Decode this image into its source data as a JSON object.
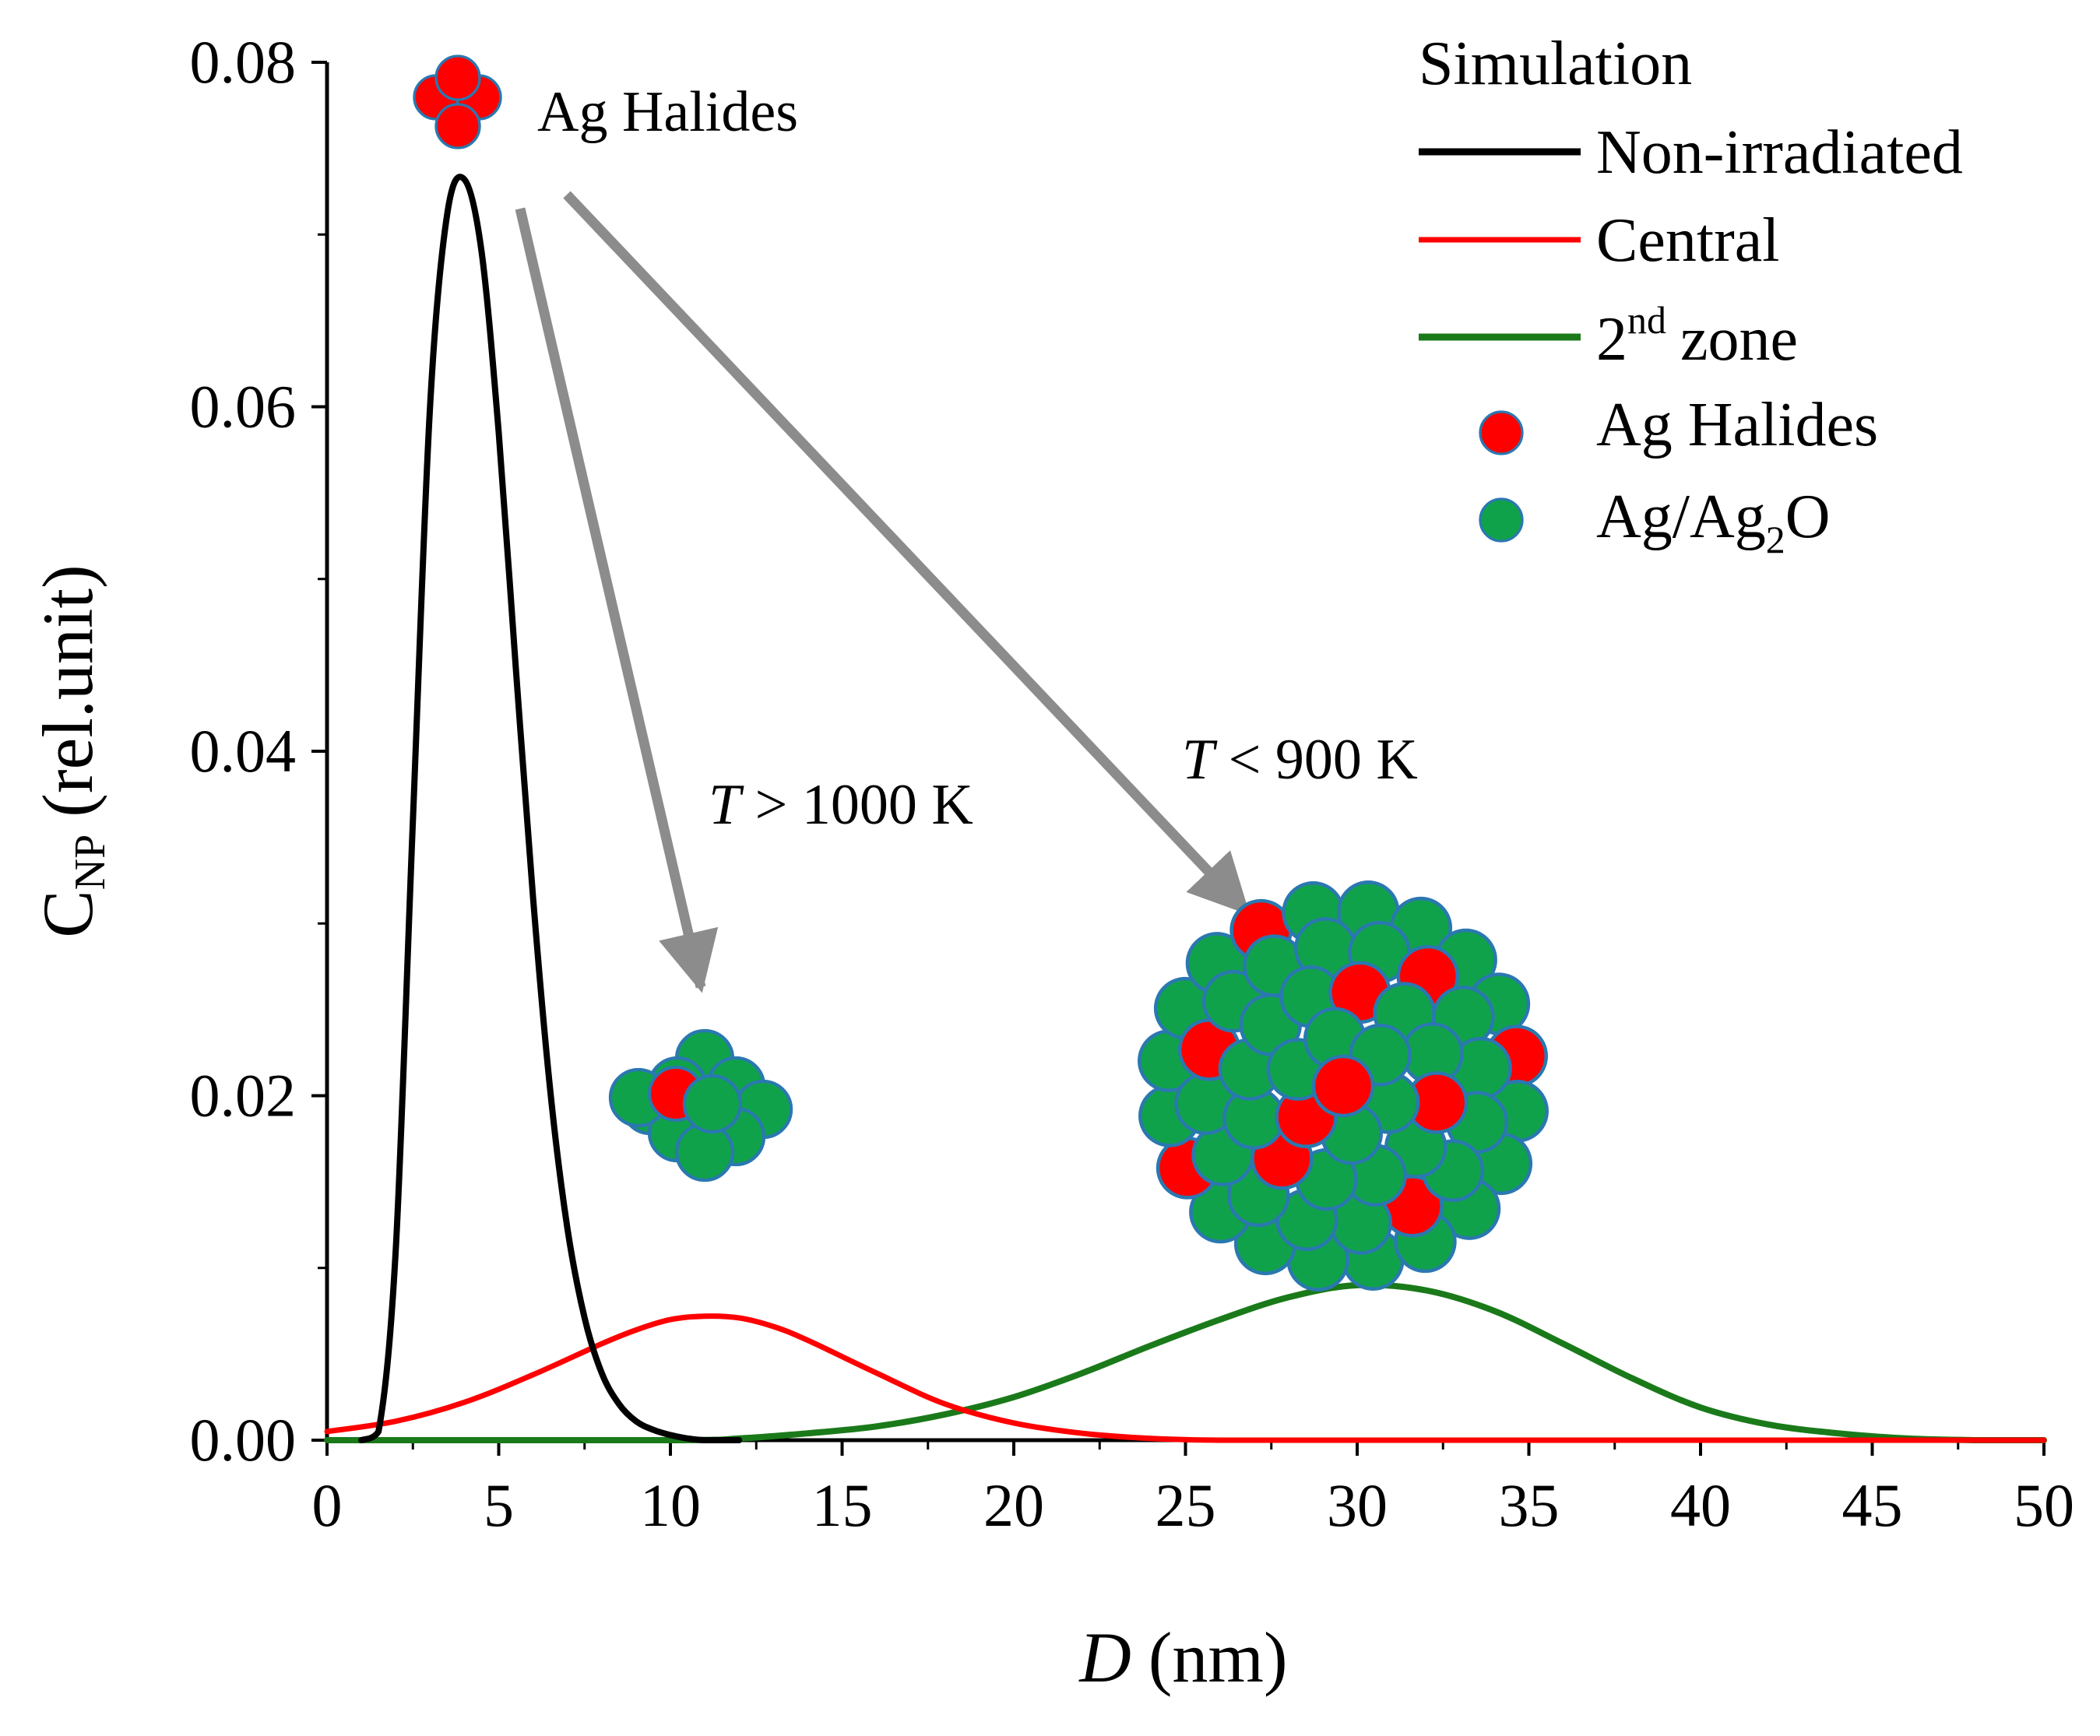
{
  "chart_data": {
    "type": "line",
    "xlabel": "D (nm)",
    "xlabel_parts": {
      "symbol": "D",
      "unit": "(nm)"
    },
    "ylabel": "C_NP (rel.unit)",
    "ylabel_parts": {
      "main": "C",
      "sub": "NP",
      "unit": "(rel.unit)"
    },
    "xlim": [
      0,
      50
    ],
    "ylim": [
      0,
      0.08
    ],
    "x_ticks": [
      0,
      5,
      10,
      15,
      20,
      25,
      30,
      35,
      40,
      45,
      50
    ],
    "x_tick_labels": [
      "0",
      "5",
      "10",
      "15",
      "20",
      "25",
      "30",
      "35",
      "40",
      "45",
      "50"
    ],
    "y_ticks": [
      0.0,
      0.02,
      0.04,
      0.06,
      0.08
    ],
    "y_tick_labels": [
      "0.00",
      "0.02",
      "0.04",
      "0.06",
      "0.08"
    ],
    "grid": false,
    "legend_position": "top-right",
    "legend_title": "Simulation",
    "series": [
      {
        "name": "Non-irradiated",
        "color": "#000000",
        "x": [
          1.0,
          1.5,
          2.0,
          2.5,
          3.0,
          3.5,
          4.0,
          4.5,
          5.0,
          5.5,
          6.0,
          6.5,
          7.0,
          7.5,
          8.0,
          8.5,
          9.0,
          9.5,
          10.0,
          10.5,
          11.0,
          12.0
        ],
        "y": [
          0.0,
          0.0005,
          0.011,
          0.036,
          0.06,
          0.0712,
          0.0732,
          0.069,
          0.0585,
          0.0448,
          0.0315,
          0.0203,
          0.0123,
          0.0071,
          0.0039,
          0.0021,
          0.0011,
          0.0006,
          0.0003,
          0.0001,
          0.0,
          0.0
        ]
      },
      {
        "name": "Central",
        "color": "#ff0000",
        "x": [
          0,
          2,
          4,
          6,
          8,
          9,
          10,
          11,
          12,
          13,
          14,
          16,
          18,
          20,
          22,
          24,
          26,
          30,
          40,
          50
        ],
        "y": [
          0.0005,
          0.0011,
          0.0022,
          0.0038,
          0.0056,
          0.0064,
          0.007,
          0.0072,
          0.0071,
          0.0066,
          0.0058,
          0.0039,
          0.0021,
          0.001,
          0.0004,
          0.0001,
          0.0,
          0.0,
          0.0,
          0.0
        ]
      },
      {
        "name": "2nd zone",
        "name_parts": {
          "main": "2",
          "sup": "nd",
          "rest": "zone"
        },
        "color": "#1a7a1a",
        "x": [
          0,
          10,
          12,
          14,
          16,
          18,
          20,
          22,
          24,
          26,
          28,
          30,
          32,
          34,
          36,
          38,
          40,
          42,
          44,
          46,
          48,
          50
        ],
        "y": [
          0.0,
          0.0,
          0.0001,
          0.0004,
          0.0008,
          0.0015,
          0.0025,
          0.0039,
          0.0055,
          0.007,
          0.0083,
          0.009,
          0.0087,
          0.0075,
          0.0056,
          0.0036,
          0.0019,
          0.0009,
          0.0004,
          0.0001,
          0.0,
          0.0
        ]
      }
    ],
    "marker_legend": [
      {
        "name": "Ag Halides",
        "color": "#ff0000"
      },
      {
        "name": "Ag/Ag2O",
        "name_parts": {
          "main": "Ag/Ag",
          "sub": "2",
          "rest": "O"
        },
        "color": "#10a24a"
      }
    ],
    "annotations": [
      {
        "text": "Ag Halides",
        "kind": "cluster-label"
      },
      {
        "text": "T > 1000 K",
        "parts": {
          "symbol": "T",
          "rest": " > 1000 K"
        }
      },
      {
        "text": "T < 900 K",
        "parts": {
          "symbol": "T",
          "rest": " < 900 K"
        }
      }
    ],
    "colors": {
      "halide_red": "#ff0000",
      "oxide_green": "#10a24a",
      "particle_edge": "#2a78b0",
      "arrow_gray": "#8c8c8c"
    }
  }
}
